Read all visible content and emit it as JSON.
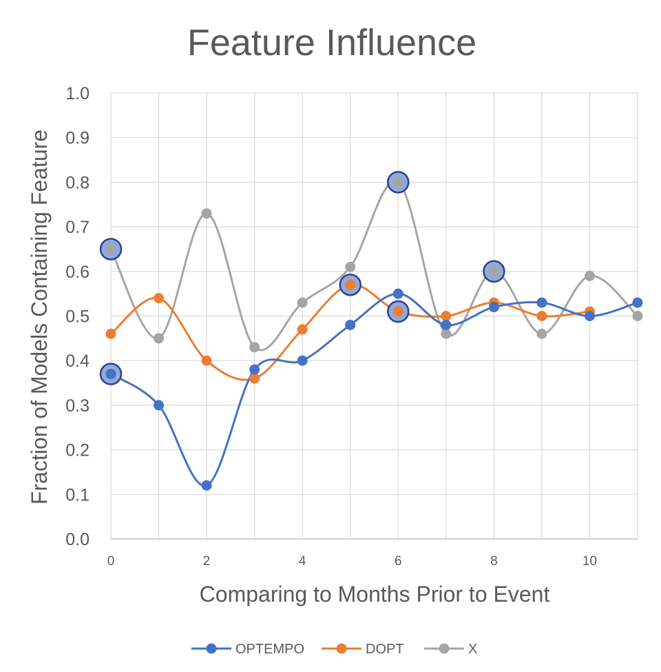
{
  "chart_data": {
    "type": "line",
    "title": "Feature Influence",
    "xlabel": "Comparing to Months Prior to Event",
    "ylabel": "Fraction of Models Containing Feature",
    "xlim": [
      0,
      11
    ],
    "ylim": [
      0,
      1
    ],
    "yticks": [
      "0.0",
      "0.1",
      "0.2",
      "0.3",
      "0.4",
      "0.5",
      "0.6",
      "0.7",
      "0.8",
      "0.9",
      "1.0"
    ],
    "xticks": [
      "0",
      "2",
      "4",
      "6",
      "8",
      "10"
    ],
    "x": [
      0,
      1,
      2,
      3,
      4,
      5,
      6,
      7,
      8,
      9,
      10,
      11
    ],
    "grid": true,
    "legend_position": "bottom",
    "series": [
      {
        "name": "OPTEMPO",
        "color": "#4472C4",
        "values": [
          0.37,
          0.3,
          0.12,
          0.38,
          0.4,
          0.48,
          0.55,
          0.48,
          0.52,
          0.53,
          0.5,
          0.53
        ]
      },
      {
        "name": "DOPT",
        "color": "#ED7D31",
        "values": [
          0.46,
          0.54,
          0.4,
          0.36,
          0.47,
          0.57,
          0.51,
          0.5,
          0.53,
          0.5,
          0.51,
          null
        ]
      },
      {
        "name": "X",
        "color": "#A5A5A5",
        "values": [
          0.65,
          0.45,
          0.73,
          0.43,
          0.53,
          0.61,
          0.8,
          0.46,
          0.6,
          0.46,
          0.59,
          0.5
        ]
      }
    ],
    "highlighted_points": [
      {
        "series": "OPTEMPO",
        "x": 0,
        "y": 0.37
      },
      {
        "series": "X",
        "x": 0,
        "y": 0.65
      },
      {
        "series": "DOPT",
        "x": 5,
        "y": 0.57
      },
      {
        "series": "X",
        "x": 6,
        "y": 0.8
      },
      {
        "series": "DOPT",
        "x": 6,
        "y": 0.51
      },
      {
        "series": "X",
        "x": 8,
        "y": 0.6
      }
    ],
    "highlight_color": "#8FAADC",
    "highlight_stroke": "#2F3F8F"
  }
}
